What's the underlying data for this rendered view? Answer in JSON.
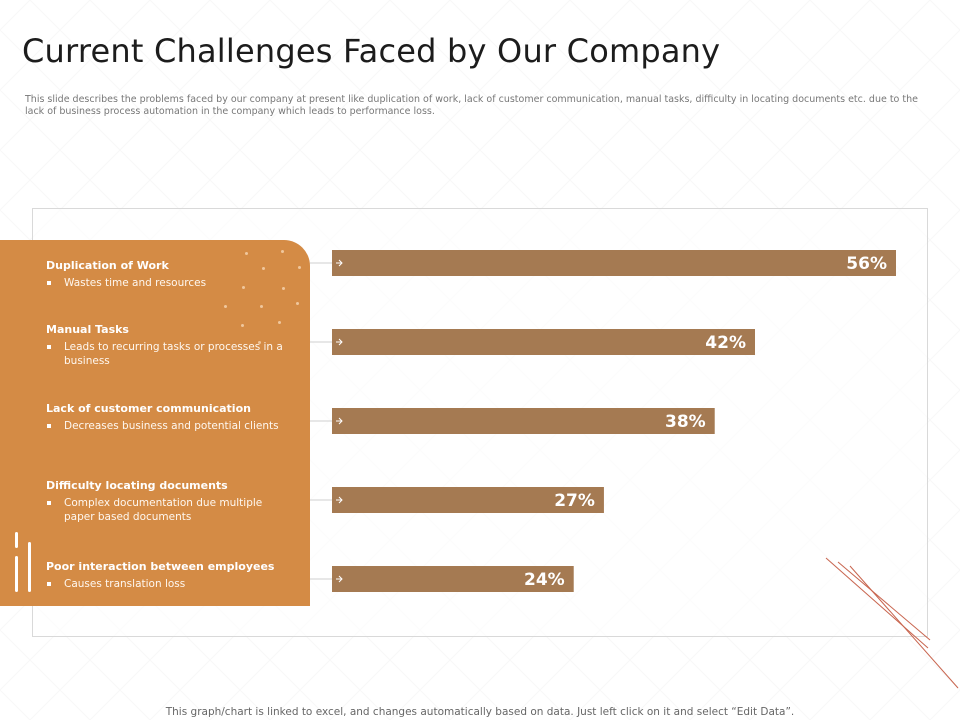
{
  "slide": {
    "title": "Current Challenges Faced by Our Company",
    "description": "This slide describes the problems faced by our company at present like duplication of work, lack of customer communication, manual tasks, difficulty in locating documents etc. due to the lack of business process automation in the company which leads to performance loss.",
    "footer": "This graph/chart is linked to excel,  and changes automatically based on data.  Just left click on it and select  “Edit Data”."
  },
  "challenges": [
    {
      "title": "Duplication of Work",
      "bullet": "Wastes time and resources"
    },
    {
      "title": "Manual Tasks",
      "bullet": "Leads to recurring tasks or processes in a business"
    },
    {
      "title": "Lack of customer communication",
      "bullet": "Decreases business and potential clients"
    },
    {
      "title": "Difficulty locating documents",
      "bullet": "Complex documentation due multiple paper based documents"
    },
    {
      "title": "Poor interaction between employees",
      "bullet": "Causes translation loss"
    }
  ],
  "chart_data": {
    "type": "bar",
    "orientation": "horizontal",
    "categories": [
      "Duplication of Work",
      "Manual Tasks",
      "Lack of customer communication",
      "Difficulty locating documents",
      "Poor interaction between employees"
    ],
    "values": [
      56,
      42,
      38,
      27,
      24
    ],
    "data_labels": [
      "56%",
      "42%",
      "38%",
      "27%",
      "24%"
    ],
    "unit": "%",
    "xlim": [
      0,
      56
    ],
    "title": "",
    "xlabel": "",
    "ylabel": "",
    "grid": false,
    "legend": "none"
  },
  "colors": {
    "bar": "#a57a52",
    "panel": "#d48b45",
    "bar_label": "#ffffff",
    "connector": "#cfcfcf",
    "accent_lines": "#c8654f"
  }
}
